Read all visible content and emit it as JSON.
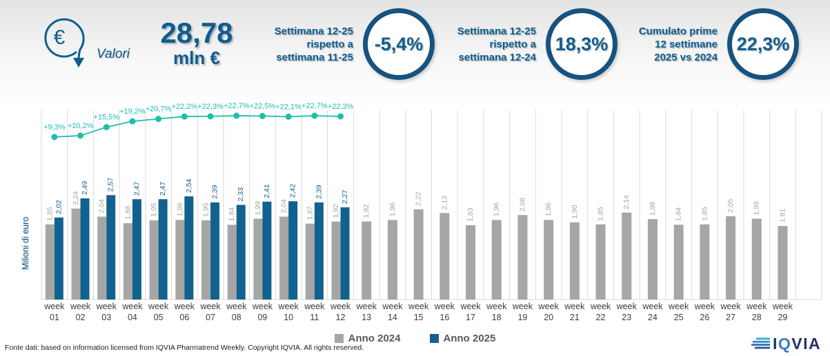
{
  "theme": {
    "brand_blue": "#0d5d8f",
    "circle_border": "#17527f",
    "teal": "#1dbfac",
    "grid": "#d9d9d9"
  },
  "header": {
    "icon_label": "Valori",
    "headline_value": "28,78",
    "headline_unit": "mln €",
    "kpis": [
      {
        "label_lines": [
          "Settimana 12-25",
          "rispetto a",
          "settimana 11-25"
        ],
        "value": "-5,4%"
      },
      {
        "label_lines": [
          "Settimana 12-25",
          "rispetto a",
          "settimana 12-24"
        ],
        "value": "18,3%"
      },
      {
        "label_lines": [
          "Cumulato prime",
          "12 settimane",
          "2025 vs 2024"
        ],
        "value": "22,3%"
      }
    ]
  },
  "chart_data": {
    "type": "bar",
    "title": "",
    "ylabel": "Milioni di euro",
    "xlabel": "",
    "x_tick_prefix": "week",
    "categories": [
      "01",
      "02",
      "03",
      "04",
      "05",
      "06",
      "07",
      "08",
      "09",
      "10",
      "11",
      "12",
      "13",
      "14",
      "15",
      "16",
      "17",
      "18",
      "19",
      "20",
      "21",
      "22",
      "23",
      "24",
      "25",
      "26",
      "27",
      "28",
      "29"
    ],
    "ylim": [
      0,
      4.8
    ],
    "grid": "vertical",
    "legend_position": "bottom",
    "decimal_separator": ",",
    "series": [
      {
        "name": "Anno 2024",
        "type": "bar",
        "color": "#a6a6a6",
        "label_color": "#a6a6a6",
        "values": [
          1.85,
          2.24,
          2.04,
          1.88,
          1.95,
          1.96,
          1.95,
          1.84,
          1.99,
          2.04,
          1.87,
          1.92,
          1.92,
          1.96,
          2.22,
          2.13,
          1.83,
          1.96,
          2.08,
          1.96,
          1.9,
          1.85,
          2.14,
          1.98,
          1.84,
          1.85,
          2.05,
          1.99,
          1.81
        ]
      },
      {
        "name": "Anno 2025",
        "type": "bar",
        "color": "#13618f",
        "label_color": "#13618f",
        "values": [
          2.02,
          2.49,
          2.57,
          2.47,
          2.47,
          2.54,
          2.39,
          2.33,
          2.41,
          2.42,
          2.39,
          2.27
        ]
      },
      {
        "name": "trend-percent-line",
        "type": "line",
        "color": "#1dbfac",
        "unit": "%",
        "label_prefix": "+",
        "label_suffix": "%",
        "values": [
          9.3,
          10.2,
          15.5,
          19.2,
          20.7,
          22.2,
          22.3,
          22.7,
          22.5,
          22.1,
          22.7,
          22.3
        ]
      }
    ]
  },
  "footer": {
    "source": "Fonte dati: based on information licensed from IQVIA Pharmatrend Weekly. Copyright IQVIA. All rights reserved.",
    "logo_part1": "I",
    "logo_part2": "Q",
    "logo_part3": "VIA"
  }
}
